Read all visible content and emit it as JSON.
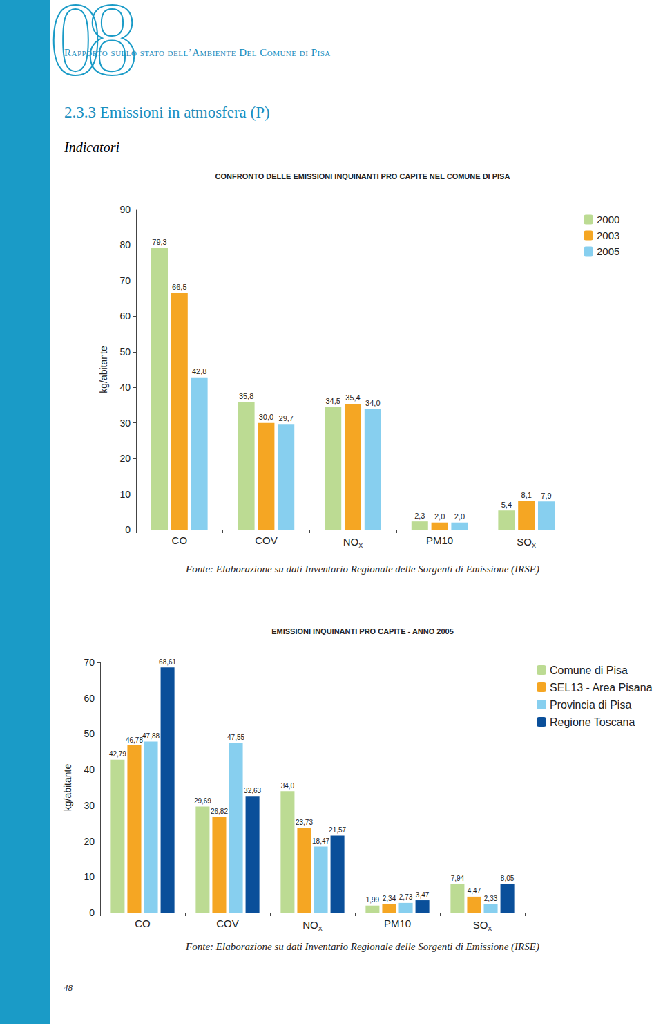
{
  "page": {
    "chapter": "08",
    "header": "Rapporto sullo stato dell’Ambiente Del Comune di Pisa",
    "section": "2.3.3 Emissioni in atmosfera (P)",
    "subsection": "Indicatori",
    "page_number": "48"
  },
  "chart_data": [
    {
      "type": "bar",
      "title": "CONFRONTO DELLE EMISSIONI INQUINANTI PRO CAPITE NEL COMUNE DI PISA",
      "y_label": "kg/abitante",
      "categories": [
        "CO",
        "COV",
        "NOX",
        "PM10",
        "SOX"
      ],
      "series": [
        {
          "name": "2000",
          "color": "#bcdb93",
          "values": [
            79.3,
            35.8,
            34.5,
            2.3,
            5.4
          ],
          "value_labels": [
            "79,3",
            "35,8",
            "34,5",
            "2,3",
            "5,4"
          ]
        },
        {
          "name": "2003",
          "color": "#f5a623",
          "values": [
            66.5,
            30.0,
            35.4,
            2.0,
            8.1
          ],
          "value_labels": [
            "66,5",
            "30,0",
            "35,4",
            "2,0",
            "8,1"
          ]
        },
        {
          "name": "2005",
          "color": "#87cfef",
          "values": [
            42.8,
            29.7,
            34.0,
            2.0,
            7.9
          ],
          "value_labels": [
            "42,8",
            "29,7",
            "34,0",
            "2,0",
            "7,9"
          ]
        }
      ],
      "ylim": [
        0,
        90
      ],
      "yticks": [
        0,
        10,
        20,
        30,
        40,
        50,
        60,
        70,
        80,
        90
      ],
      "grid": false,
      "legend": "right",
      "data_labels": true,
      "source": "Fonte: Elaborazione su dati Inventario Regionale delle Sorgenti di Emissione (IRSE)"
    },
    {
      "type": "bar",
      "title": "EMISSIONI INQUINANTI PRO CAPITE - ANNO 2005",
      "y_label": "kg/abitante",
      "categories": [
        "CO",
        "COV",
        "NOX",
        "PM10",
        "SOX"
      ],
      "series": [
        {
          "name": "Comune di Pisa",
          "color": "#bcdb93",
          "values": [
            42.79,
            29.69,
            34.0,
            1.99,
            7.94
          ],
          "value_labels": [
            "42,79",
            "29,69",
            "34,0",
            "1,99",
            "7,94"
          ]
        },
        {
          "name": "SEL13 - Area Pisana",
          "color": "#f5a623",
          "values": [
            46.78,
            26.82,
            23.73,
            2.34,
            4.47
          ],
          "value_labels": [
            "46,78",
            "26,82",
            "23,73",
            "2,34",
            "4,47"
          ]
        },
        {
          "name": "Provincia di Pisa",
          "color": "#87cfef",
          "values": [
            47.88,
            47.55,
            18.47,
            2.73,
            2.33
          ],
          "value_labels": [
            "47,88",
            "47,55",
            "18,47",
            "2,73",
            "2,33"
          ]
        },
        {
          "name": "Regione Toscana",
          "color": "#0a4f9a",
          "values": [
            68.61,
            32.63,
            21.57,
            3.47,
            8.05
          ],
          "value_labels": [
            "68,61",
            "32,63",
            "21,57",
            "3,47",
            "8,05"
          ]
        }
      ],
      "ylim": [
        0,
        70
      ],
      "yticks": [
        0,
        10,
        20,
        30,
        40,
        50,
        60,
        70
      ],
      "grid": false,
      "legend": "right",
      "data_labels": true,
      "source": "Fonte: Elaborazione su dati Inventario Regionale delle Sorgenti di Emissione (IRSE)"
    }
  ]
}
